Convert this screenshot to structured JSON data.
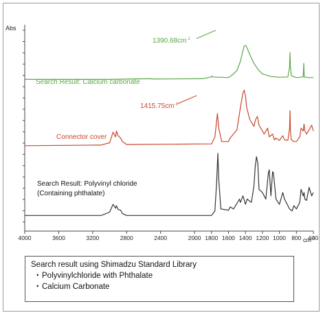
{
  "chart_data": {
    "type": "line",
    "ylabel": "Abs",
    "xlabel": "cm-1",
    "xlim": [
      4000,
      600
    ],
    "x_ticks": [
      4000,
      3600,
      3200,
      2800,
      2400,
      2000,
      1800,
      1600,
      1400,
      1200,
      1000,
      800,
      600
    ],
    "grid": false,
    "series": [
      {
        "name": "Search Result: Calcium carbonate",
        "color": "#5aa845",
        "points": [
          [
            4000,
            0.05
          ],
          [
            3000,
            0.05
          ],
          [
            2520,
            0.07
          ],
          [
            2500,
            0.06
          ],
          [
            1900,
            0.07
          ],
          [
            1800,
            0.12
          ],
          [
            1795,
            0.15
          ],
          [
            1790,
            0.12
          ],
          [
            1600,
            0.1
          ],
          [
            1550,
            0.18
          ],
          [
            1500,
            0.3
          ],
          [
            1460,
            0.55
          ],
          [
            1430,
            0.85
          ],
          [
            1415,
            0.98
          ],
          [
            1400,
            1.0
          ],
          [
            1385,
            0.95
          ],
          [
            1350,
            0.75
          ],
          [
            1300,
            0.5
          ],
          [
            1250,
            0.32
          ],
          [
            1200,
            0.2
          ],
          [
            1100,
            0.13
          ],
          [
            1000,
            0.11
          ],
          [
            900,
            0.12
          ],
          [
            880,
            0.4
          ],
          [
            875,
            0.8
          ],
          [
            870,
            0.4
          ],
          [
            860,
            0.15
          ],
          [
            800,
            0.1
          ],
          [
            720,
            0.12
          ],
          [
            713,
            0.5
          ],
          [
            708,
            0.12
          ],
          [
            650,
            0.1
          ],
          [
            600,
            0.1
          ]
        ]
      },
      {
        "name": "Connector cover",
        "color": "#c9462a",
        "points": [
          [
            4000,
            0.05
          ],
          [
            3100,
            0.06
          ],
          [
            3000,
            0.1
          ],
          [
            2960,
            0.28
          ],
          [
            2930,
            0.2
          ],
          [
            2920,
            0.3
          ],
          [
            2900,
            0.22
          ],
          [
            2870,
            0.18
          ],
          [
            2850,
            0.12
          ],
          [
            2800,
            0.07
          ],
          [
            1800,
            0.08
          ],
          [
            1760,
            0.2
          ],
          [
            1730,
            0.6
          ],
          [
            1715,
            0.35
          ],
          [
            1680,
            0.12
          ],
          [
            1600,
            0.12
          ],
          [
            1580,
            0.18
          ],
          [
            1500,
            0.32
          ],
          [
            1460,
            0.7
          ],
          [
            1430,
            0.95
          ],
          [
            1415,
            1.0
          ],
          [
            1400,
            0.9
          ],
          [
            1385,
            0.7
          ],
          [
            1350,
            0.5
          ],
          [
            1300,
            0.38
          ],
          [
            1280,
            0.5
          ],
          [
            1260,
            0.55
          ],
          [
            1240,
            0.4
          ],
          [
            1200,
            0.3
          ],
          [
            1180,
            0.25
          ],
          [
            1140,
            0.35
          ],
          [
            1120,
            0.2
          ],
          [
            1080,
            0.25
          ],
          [
            1060,
            0.15
          ],
          [
            1040,
            0.18
          ],
          [
            1000,
            0.14
          ],
          [
            960,
            0.22
          ],
          [
            940,
            0.15
          ],
          [
            900,
            0.14
          ],
          [
            880,
            0.35
          ],
          [
            875,
            0.65
          ],
          [
            870,
            0.3
          ],
          [
            860,
            0.15
          ],
          [
            830,
            0.12
          ],
          [
            800,
            0.12
          ],
          [
            760,
            0.2
          ],
          [
            745,
            0.35
          ],
          [
            720,
            0.3
          ],
          [
            710,
            0.42
          ],
          [
            700,
            0.3
          ],
          [
            680,
            0.25
          ],
          [
            650,
            0.32
          ],
          [
            620,
            0.4
          ],
          [
            600,
            0.3
          ]
        ]
      },
      {
        "name": "Search Result: Polyvinyl chloride (Containing phthalate)",
        "color": "#333333",
        "points": [
          [
            4000,
            0.05
          ],
          [
            3100,
            0.05
          ],
          [
            3000,
            0.1
          ],
          [
            2960,
            0.22
          ],
          [
            2930,
            0.16
          ],
          [
            2920,
            0.2
          ],
          [
            2900,
            0.14
          ],
          [
            2870,
            0.13
          ],
          [
            2850,
            0.08
          ],
          [
            2800,
            0.05
          ],
          [
            1800,
            0.05
          ],
          [
            1760,
            0.12
          ],
          [
            1740,
            0.55
          ],
          [
            1725,
            1.0
          ],
          [
            1715,
            0.6
          ],
          [
            1690,
            0.15
          ],
          [
            1600,
            0.13
          ],
          [
            1580,
            0.18
          ],
          [
            1540,
            0.15
          ],
          [
            1470,
            0.3
          ],
          [
            1460,
            0.25
          ],
          [
            1430,
            0.35
          ],
          [
            1400,
            0.22
          ],
          [
            1380,
            0.3
          ],
          [
            1330,
            0.25
          ],
          [
            1300,
            0.5
          ],
          [
            1285,
            0.8
          ],
          [
            1270,
            0.95
          ],
          [
            1255,
            0.85
          ],
          [
            1240,
            0.45
          ],
          [
            1200,
            0.4
          ],
          [
            1180,
            0.35
          ],
          [
            1160,
            0.3
          ],
          [
            1130,
            0.7
          ],
          [
            1120,
            0.75
          ],
          [
            1100,
            0.35
          ],
          [
            1080,
            0.72
          ],
          [
            1070,
            0.7
          ],
          [
            1040,
            0.3
          ],
          [
            1000,
            0.22
          ],
          [
            960,
            0.4
          ],
          [
            940,
            0.3
          ],
          [
            880,
            0.15
          ],
          [
            850,
            0.12
          ],
          [
            830,
            0.2
          ],
          [
            800,
            0.15
          ],
          [
            760,
            0.25
          ],
          [
            745,
            0.45
          ],
          [
            720,
            0.35
          ],
          [
            710,
            0.4
          ],
          [
            700,
            0.3
          ],
          [
            680,
            0.28
          ],
          [
            650,
            0.48
          ],
          [
            620,
            0.35
          ],
          [
            600,
            0.4
          ]
        ]
      }
    ],
    "annotations": [
      {
        "text": "1390.68cm-1",
        "color": "#5aa845",
        "x": 1390.68
      },
      {
        "text": "1415.75cm-1",
        "color": "#c9462a",
        "x": 1415.75
      }
    ]
  },
  "caption": {
    "title": "Search result using Shimadzu Standard Library",
    "items": [
      "Polyvinylchloride with Phthalate",
      "Calcium Carbonate"
    ],
    "bullet": "・"
  }
}
